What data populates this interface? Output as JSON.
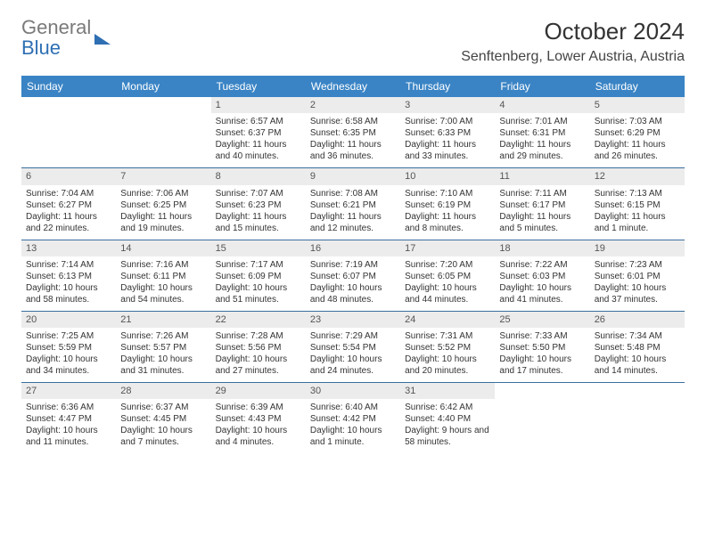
{
  "logo": {
    "part1": "General",
    "part2": "Blue"
  },
  "header": {
    "title": "October 2024",
    "location": "Senftenberg, Lower Austria, Austria"
  },
  "colors": {
    "header_band": "#3a84c5",
    "daynum_bg": "#ececec",
    "week_border": "#3a6fa0",
    "logo_gray": "#7a7a7a",
    "logo_blue": "#2e6fb3"
  },
  "days_of_week": [
    "Sunday",
    "Monday",
    "Tuesday",
    "Wednesday",
    "Thursday",
    "Friday",
    "Saturday"
  ],
  "weeks": [
    [
      {
        "empty": true
      },
      {
        "empty": true
      },
      {
        "num": "1",
        "sunrise": "Sunrise: 6:57 AM",
        "sunset": "Sunset: 6:37 PM",
        "daylight": "Daylight: 11 hours and 40 minutes."
      },
      {
        "num": "2",
        "sunrise": "Sunrise: 6:58 AM",
        "sunset": "Sunset: 6:35 PM",
        "daylight": "Daylight: 11 hours and 36 minutes."
      },
      {
        "num": "3",
        "sunrise": "Sunrise: 7:00 AM",
        "sunset": "Sunset: 6:33 PM",
        "daylight": "Daylight: 11 hours and 33 minutes."
      },
      {
        "num": "4",
        "sunrise": "Sunrise: 7:01 AM",
        "sunset": "Sunset: 6:31 PM",
        "daylight": "Daylight: 11 hours and 29 minutes."
      },
      {
        "num": "5",
        "sunrise": "Sunrise: 7:03 AM",
        "sunset": "Sunset: 6:29 PM",
        "daylight": "Daylight: 11 hours and 26 minutes."
      }
    ],
    [
      {
        "num": "6",
        "sunrise": "Sunrise: 7:04 AM",
        "sunset": "Sunset: 6:27 PM",
        "daylight": "Daylight: 11 hours and 22 minutes."
      },
      {
        "num": "7",
        "sunrise": "Sunrise: 7:06 AM",
        "sunset": "Sunset: 6:25 PM",
        "daylight": "Daylight: 11 hours and 19 minutes."
      },
      {
        "num": "8",
        "sunrise": "Sunrise: 7:07 AM",
        "sunset": "Sunset: 6:23 PM",
        "daylight": "Daylight: 11 hours and 15 minutes."
      },
      {
        "num": "9",
        "sunrise": "Sunrise: 7:08 AM",
        "sunset": "Sunset: 6:21 PM",
        "daylight": "Daylight: 11 hours and 12 minutes."
      },
      {
        "num": "10",
        "sunrise": "Sunrise: 7:10 AM",
        "sunset": "Sunset: 6:19 PM",
        "daylight": "Daylight: 11 hours and 8 minutes."
      },
      {
        "num": "11",
        "sunrise": "Sunrise: 7:11 AM",
        "sunset": "Sunset: 6:17 PM",
        "daylight": "Daylight: 11 hours and 5 minutes."
      },
      {
        "num": "12",
        "sunrise": "Sunrise: 7:13 AM",
        "sunset": "Sunset: 6:15 PM",
        "daylight": "Daylight: 11 hours and 1 minute."
      }
    ],
    [
      {
        "num": "13",
        "sunrise": "Sunrise: 7:14 AM",
        "sunset": "Sunset: 6:13 PM",
        "daylight": "Daylight: 10 hours and 58 minutes."
      },
      {
        "num": "14",
        "sunrise": "Sunrise: 7:16 AM",
        "sunset": "Sunset: 6:11 PM",
        "daylight": "Daylight: 10 hours and 54 minutes."
      },
      {
        "num": "15",
        "sunrise": "Sunrise: 7:17 AM",
        "sunset": "Sunset: 6:09 PM",
        "daylight": "Daylight: 10 hours and 51 minutes."
      },
      {
        "num": "16",
        "sunrise": "Sunrise: 7:19 AM",
        "sunset": "Sunset: 6:07 PM",
        "daylight": "Daylight: 10 hours and 48 minutes."
      },
      {
        "num": "17",
        "sunrise": "Sunrise: 7:20 AM",
        "sunset": "Sunset: 6:05 PM",
        "daylight": "Daylight: 10 hours and 44 minutes."
      },
      {
        "num": "18",
        "sunrise": "Sunrise: 7:22 AM",
        "sunset": "Sunset: 6:03 PM",
        "daylight": "Daylight: 10 hours and 41 minutes."
      },
      {
        "num": "19",
        "sunrise": "Sunrise: 7:23 AM",
        "sunset": "Sunset: 6:01 PM",
        "daylight": "Daylight: 10 hours and 37 minutes."
      }
    ],
    [
      {
        "num": "20",
        "sunrise": "Sunrise: 7:25 AM",
        "sunset": "Sunset: 5:59 PM",
        "daylight": "Daylight: 10 hours and 34 minutes."
      },
      {
        "num": "21",
        "sunrise": "Sunrise: 7:26 AM",
        "sunset": "Sunset: 5:57 PM",
        "daylight": "Daylight: 10 hours and 31 minutes."
      },
      {
        "num": "22",
        "sunrise": "Sunrise: 7:28 AM",
        "sunset": "Sunset: 5:56 PM",
        "daylight": "Daylight: 10 hours and 27 minutes."
      },
      {
        "num": "23",
        "sunrise": "Sunrise: 7:29 AM",
        "sunset": "Sunset: 5:54 PM",
        "daylight": "Daylight: 10 hours and 24 minutes."
      },
      {
        "num": "24",
        "sunrise": "Sunrise: 7:31 AM",
        "sunset": "Sunset: 5:52 PM",
        "daylight": "Daylight: 10 hours and 20 minutes."
      },
      {
        "num": "25",
        "sunrise": "Sunrise: 7:33 AM",
        "sunset": "Sunset: 5:50 PM",
        "daylight": "Daylight: 10 hours and 17 minutes."
      },
      {
        "num": "26",
        "sunrise": "Sunrise: 7:34 AM",
        "sunset": "Sunset: 5:48 PM",
        "daylight": "Daylight: 10 hours and 14 minutes."
      }
    ],
    [
      {
        "num": "27",
        "sunrise": "Sunrise: 6:36 AM",
        "sunset": "Sunset: 4:47 PM",
        "daylight": "Daylight: 10 hours and 11 minutes."
      },
      {
        "num": "28",
        "sunrise": "Sunrise: 6:37 AM",
        "sunset": "Sunset: 4:45 PM",
        "daylight": "Daylight: 10 hours and 7 minutes."
      },
      {
        "num": "29",
        "sunrise": "Sunrise: 6:39 AM",
        "sunset": "Sunset: 4:43 PM",
        "daylight": "Daylight: 10 hours and 4 minutes."
      },
      {
        "num": "30",
        "sunrise": "Sunrise: 6:40 AM",
        "sunset": "Sunset: 4:42 PM",
        "daylight": "Daylight: 10 hours and 1 minute."
      },
      {
        "num": "31",
        "sunrise": "Sunrise: 6:42 AM",
        "sunset": "Sunset: 4:40 PM",
        "daylight": "Daylight: 9 hours and 58 minutes."
      },
      {
        "empty": true
      },
      {
        "empty": true
      }
    ]
  ]
}
